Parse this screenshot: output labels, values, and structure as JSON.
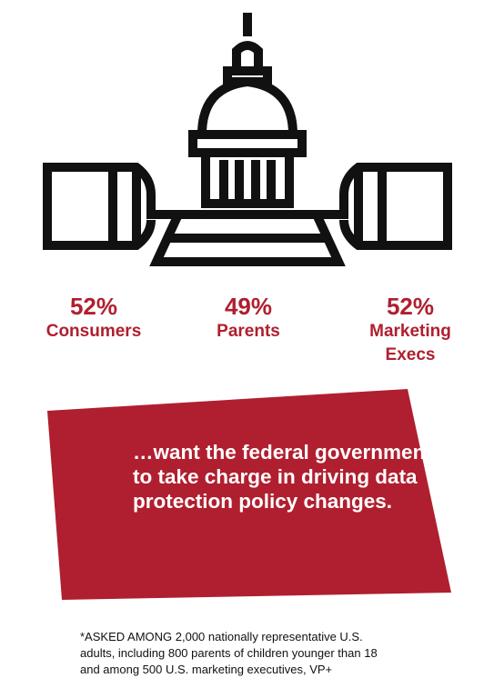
{
  "colors": {
    "accent": "#b01f2f",
    "icon_stroke": "#111111"
  },
  "icon": "capitol-building-icon",
  "stats": [
    {
      "percent": "52%",
      "group": "Consumers"
    },
    {
      "percent": "49%",
      "group": "Parents"
    },
    {
      "percent": "52%",
      "group": "Marketing\nExecs"
    }
  ],
  "banner": {
    "text": "…want the federal government to take charge in driving data protection policy changes."
  },
  "footnote": "*ASKED AMONG 2,000 nationally representative U.S.\nadults, including 800 parents of children younger than 18\nand among 500 U.S. marketing executives, VP+"
}
